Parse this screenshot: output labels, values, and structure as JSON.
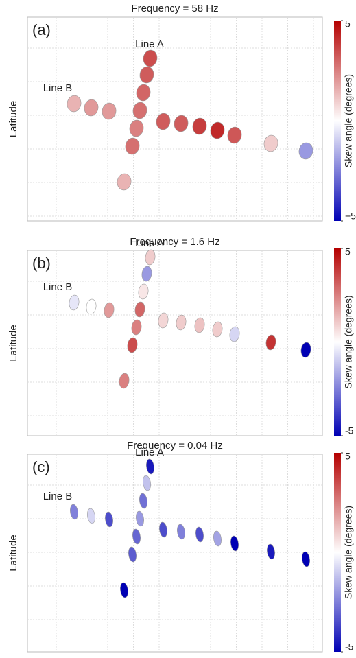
{
  "chart_data": [
    {
      "type": "ellipse",
      "title": "Frequency = 58 Hz",
      "panel_label": "(a)",
      "y_label": "Latitude",
      "annotations": [
        "Line A",
        "Line B"
      ],
      "colorbar_label": "Skew angle (degrees)",
      "clim": [
        -5,
        5
      ],
      "cticks": [
        5,
        {
          "value": -5,
          "label": "−5"
        }
      ],
      "values": [
        3.5,
        3.2,
        3,
        2.8,
        2.5,
        2.8,
        1.5,
        1.5,
        2,
        2,
        3.2,
        3.2,
        3.8,
        4.2,
        3.3,
        1,
        -2
      ]
    },
    {
      "type": "ellipse",
      "title": "Frequency = 1.6 Hz",
      "panel_label": "(b)",
      "y_label": "Latitude",
      "annotations": [
        "Line A",
        "Line B"
      ],
      "colorbar_label": "Skew angle (degrees)",
      "clim": [
        -5,
        5
      ],
      "cticks": [
        5,
        -5
      ],
      "values": [
        1,
        -2,
        0.5,
        3,
        2.5,
        3.5,
        2.5,
        -0.5,
        0,
        2,
        0.8,
        1,
        1.2,
        1,
        -0.8,
        4,
        -5
      ]
    },
    {
      "type": "ellipse",
      "title": "Frequency = 0.04 Hz",
      "panel_label": "(c)",
      "y_label": "Latitude",
      "annotations": [
        "Line A",
        "Line B"
      ],
      "colorbar_label": "Skew angle (degrees)",
      "clim": [
        -5,
        5
      ],
      "cticks": [
        5,
        -5
      ],
      "values": [
        -4.5,
        -1.2,
        -2.8,
        -2,
        -3,
        -3.2,
        -5,
        -2.5,
        -0.8,
        -3.5,
        -3.5,
        -2.5,
        -3.5,
        -1.8,
        -5,
        -4.5,
        -5
      ]
    }
  ]
}
